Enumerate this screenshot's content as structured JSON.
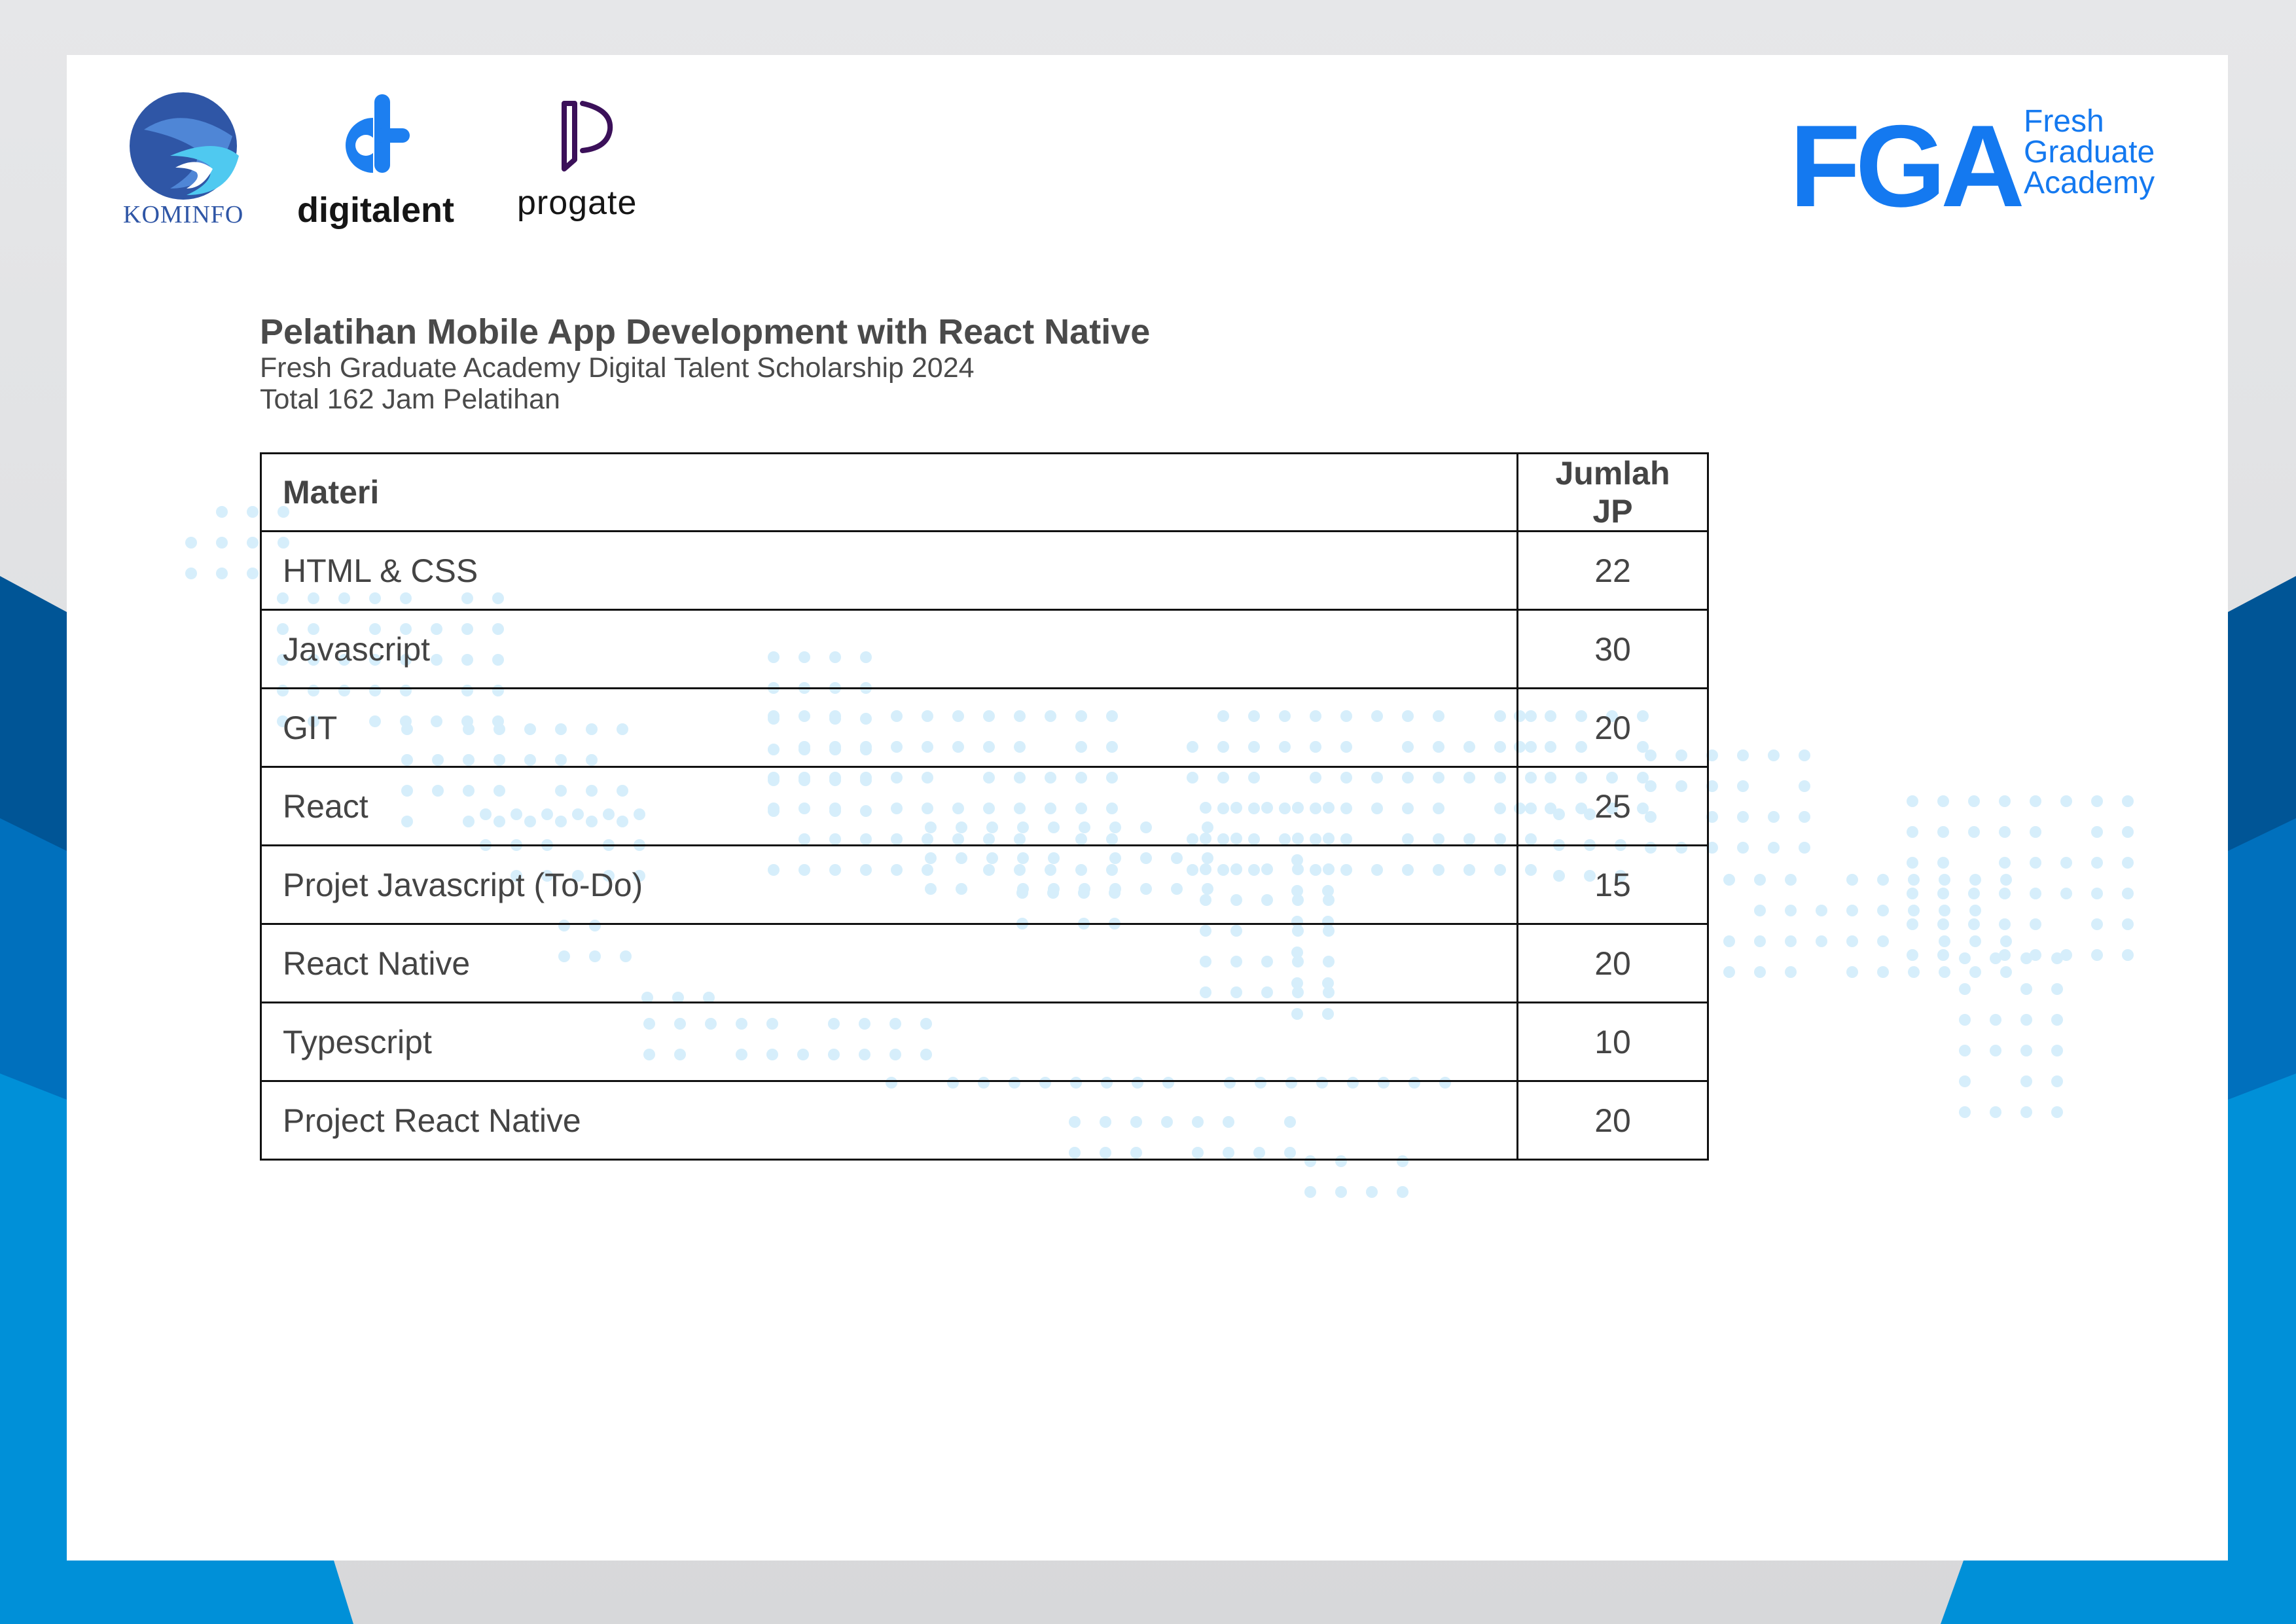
{
  "logos": {
    "kominfo": "KOMINFO",
    "digitalent": "digitalent",
    "progate": "progate",
    "fga_mark": "FGA",
    "fga_line1": "Fresh",
    "fga_line2": "Graduate",
    "fga_line3": "Academy"
  },
  "colors": {
    "fga_blue": "#1479f0",
    "progate_purple": "#3b1059",
    "kominfo_blue": "#2f56a6",
    "text_gray": "#4a4a4a",
    "dot_blue": "#d6eefb"
  },
  "header": {
    "title": "Pelatihan Mobile App Development with React Native",
    "subtitle": "Fresh Graduate Academy Digital Talent Scholarship 2024",
    "total": "Total 162 Jam Pelatihan"
  },
  "table": {
    "col_materi": "Materi",
    "col_jp": "Jumlah JP",
    "rows": [
      {
        "materi": "HTML & CSS",
        "jp": "22"
      },
      {
        "materi": "Javascript",
        "jp": "30"
      },
      {
        "materi": "GIT",
        "jp": "20"
      },
      {
        "materi": "React",
        "jp": "25"
      },
      {
        "materi": "Projet Javascript (To-Do)",
        "jp": "15"
      },
      {
        "materi": "React Native",
        "jp": "20"
      },
      {
        "materi": "Typescript",
        "jp": "10"
      },
      {
        "materi": "Project React Native",
        "jp": "20"
      }
    ]
  }
}
